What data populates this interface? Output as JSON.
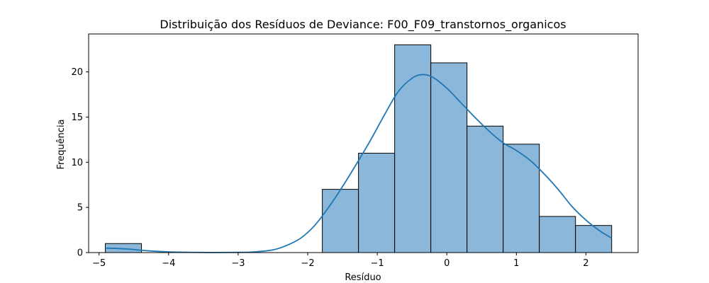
{
  "chart_data": {
    "type": "bar",
    "title": "Distribuição dos Resíduos de Deviance: F00_F09_transtornos_organicos",
    "xlabel": "Resíduo",
    "ylabel": "Frequência",
    "xlim": [
      -5.15,
      2.75
    ],
    "ylim": [
      0,
      24.2
    ],
    "xticks": [
      -5,
      -4,
      -3,
      -2,
      -1,
      0,
      1,
      2
    ],
    "yticks": [
      0,
      5,
      10,
      15,
      20
    ],
    "bins": [
      {
        "start": -4.91,
        "end": -4.39,
        "count": 1
      },
      {
        "start": -4.39,
        "end": -3.87,
        "count": 0
      },
      {
        "start": -3.87,
        "end": -3.35,
        "count": 0
      },
      {
        "start": -3.35,
        "end": -2.83,
        "count": 0
      },
      {
        "start": -2.83,
        "end": -2.31,
        "count": 0
      },
      {
        "start": -2.31,
        "end": -1.79,
        "count": 0
      },
      {
        "start": -1.79,
        "end": -1.27,
        "count": 7
      },
      {
        "start": -1.27,
        "end": -0.75,
        "count": 11
      },
      {
        "start": -0.75,
        "end": -0.23,
        "count": 23
      },
      {
        "start": -0.23,
        "end": 0.29,
        "count": 21
      },
      {
        "start": 0.29,
        "end": 0.81,
        "count": 14
      },
      {
        "start": 0.81,
        "end": 1.33,
        "count": 12
      },
      {
        "start": 1.33,
        "end": 1.85,
        "count": 4
      },
      {
        "start": 1.85,
        "end": 2.37,
        "count": 3
      }
    ],
    "kde": {
      "x": [
        -4.91,
        -4.6,
        -4.3,
        -4.0,
        -3.7,
        -3.4,
        -3.1,
        -2.8,
        -2.5,
        -2.3,
        -2.1,
        -1.9,
        -1.7,
        -1.5,
        -1.3,
        -1.1,
        -0.9,
        -0.7,
        -0.5,
        -0.35,
        -0.2,
        0.0,
        0.2,
        0.4,
        0.6,
        0.8,
        1.0,
        1.2,
        1.4,
        1.6,
        1.8,
        2.0,
        2.2,
        2.37
      ],
      "y": [
        0.5,
        0.4,
        0.2,
        0.08,
        0.03,
        0.01,
        0.02,
        0.06,
        0.3,
        0.8,
        1.6,
        3.0,
        5.0,
        7.3,
        9.8,
        12.4,
        15.2,
        17.8,
        19.3,
        19.7,
        19.4,
        18.2,
        16.6,
        15.0,
        13.5,
        12.2,
        11.3,
        10.2,
        8.7,
        7.0,
        5.1,
        3.6,
        2.4,
        1.6
      ]
    },
    "bar_color": "#8bb8da",
    "bar_edge": "#000000",
    "line_color": "#1f77b4",
    "grid": false,
    "legend": "none"
  }
}
